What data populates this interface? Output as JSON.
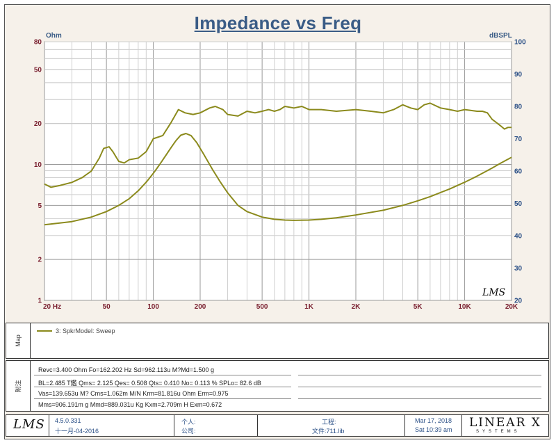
{
  "chart_data": {
    "type": "line",
    "title": "Impedance vs Freq",
    "ylabel_left": "Ohm",
    "ylabel_right": "dBSPL",
    "xscale": "log",
    "yscale_left": "log",
    "xlim": [
      20,
      20000
    ],
    "ylim_left": [
      1,
      80
    ],
    "ylim_right": [
      20,
      100
    ],
    "grid": true,
    "x_tick_labels": [
      "20 Hz",
      "50",
      "100",
      "200",
      "500",
      "1K",
      "2K",
      "5K",
      "10K",
      "20K"
    ],
    "x_tick_values": [
      20,
      50,
      100,
      200,
      500,
      1000,
      2000,
      5000,
      10000,
      20000
    ],
    "y_left_tick_labels": [
      "1",
      "2",
      "5",
      "10",
      "20",
      "50",
      "80"
    ],
    "y_left_tick_values": [
      1,
      2,
      5,
      10,
      20,
      50,
      80
    ],
    "y_right_tick_labels": [
      "20",
      "30",
      "40",
      "50",
      "60",
      "70",
      "80",
      "90",
      "100"
    ],
    "y_right_tick_values": [
      20,
      30,
      40,
      50,
      60,
      70,
      80,
      90,
      100
    ],
    "series": [
      {
        "name": "SPL",
        "axis": "right",
        "color": "#8b8a1c",
        "x": [
          20,
          22,
          25,
          30,
          35,
          40,
          45,
          48,
          52,
          55,
          60,
          65,
          70,
          80,
          90,
          100,
          115,
          130,
          145,
          160,
          180,
          200,
          230,
          250,
          280,
          300,
          350,
          400,
          450,
          500,
          550,
          600,
          650,
          700,
          800,
          900,
          1000,
          1200,
          1500,
          2000,
          2500,
          3000,
          3500,
          4000,
          4500,
          5000,
          5500,
          6000,
          7000,
          8000,
          9000,
          10000,
          12000,
          13000,
          14000,
          15000,
          16000,
          17000,
          18000,
          19000,
          20000
        ],
        "y": [
          56,
          55,
          55.5,
          56.5,
          58,
          60,
          64,
          67,
          67.5,
          66,
          63,
          62.5,
          63.5,
          64,
          66,
          70,
          71,
          75,
          79,
          78,
          77.5,
          78,
          79.5,
          80,
          79,
          77.5,
          77,
          78.5,
          78,
          78.5,
          79,
          78.5,
          79,
          80,
          79.5,
          80,
          79,
          79,
          78.5,
          79,
          78.5,
          78,
          79,
          80.5,
          79.5,
          79,
          80.5,
          81,
          79.5,
          79,
          78.5,
          79,
          78.5,
          78.5,
          78,
          76,
          75,
          74,
          73,
          73.5,
          73.5
        ]
      },
      {
        "name": "3: SpkrModel: Sweep",
        "axis": "left",
        "color": "#8b8a1c",
        "x": [
          20,
          30,
          40,
          50,
          60,
          70,
          80,
          90,
          100,
          110,
          120,
          130,
          140,
          150,
          162,
          175,
          190,
          210,
          240,
          270,
          300,
          350,
          400,
          500,
          600,
          700,
          800,
          1000,
          1200,
          1500,
          2000,
          3000,
          4000,
          5000,
          6000,
          8000,
          10000,
          12000,
          15000,
          17000,
          20000
        ],
        "y": [
          3.6,
          3.8,
          4.1,
          4.5,
          5.0,
          5.6,
          6.4,
          7.4,
          8.6,
          10.0,
          11.6,
          13.3,
          15.0,
          16.4,
          16.9,
          16.3,
          14.5,
          12.0,
          9.2,
          7.4,
          6.2,
          5.0,
          4.5,
          4.1,
          3.95,
          3.9,
          3.88,
          3.9,
          3.95,
          4.05,
          4.25,
          4.6,
          5.0,
          5.4,
          5.8,
          6.6,
          7.4,
          8.2,
          9.4,
          10.2,
          11.3
        ]
      }
    ]
  },
  "map_panel": {
    "label": "Map",
    "legend_entry": "3: SpkrModel: Sweep"
  },
  "notes_panel": {
    "label": "附注",
    "lines": [
      "Revc=3.400 Ohm  Fo=162.202 Hz  Sd=962.113u M?Md=1.500 g",
      "BL=2.485 T鑑  Qms= 2.125  Qes= 0.508  Qts= 0.410  No= 0.113 %  SPLo= 82.6 dB",
      "Vas=139.653u M? Cms=1.062m M/N  Krm=81.816u Ohm  Erm=0.975",
      "Mms=906.191m g  Mmd=889.031u Kg  Kxm=2.709m H  Exm=0.672"
    ]
  },
  "footer": {
    "logo": "LMS",
    "version": "4.5.0.331",
    "build_date": "十一月-04-2016",
    "person_label": "个人:",
    "company_label": "公司:",
    "project_label": "工程:",
    "file_label": "文件:711.lib",
    "date": "Mar 17, 2018",
    "time": "Sat 10:39 am",
    "brand": "LINEAR X",
    "brand_sub": "SYSTEMS"
  },
  "watermark_logo": "LMS"
}
